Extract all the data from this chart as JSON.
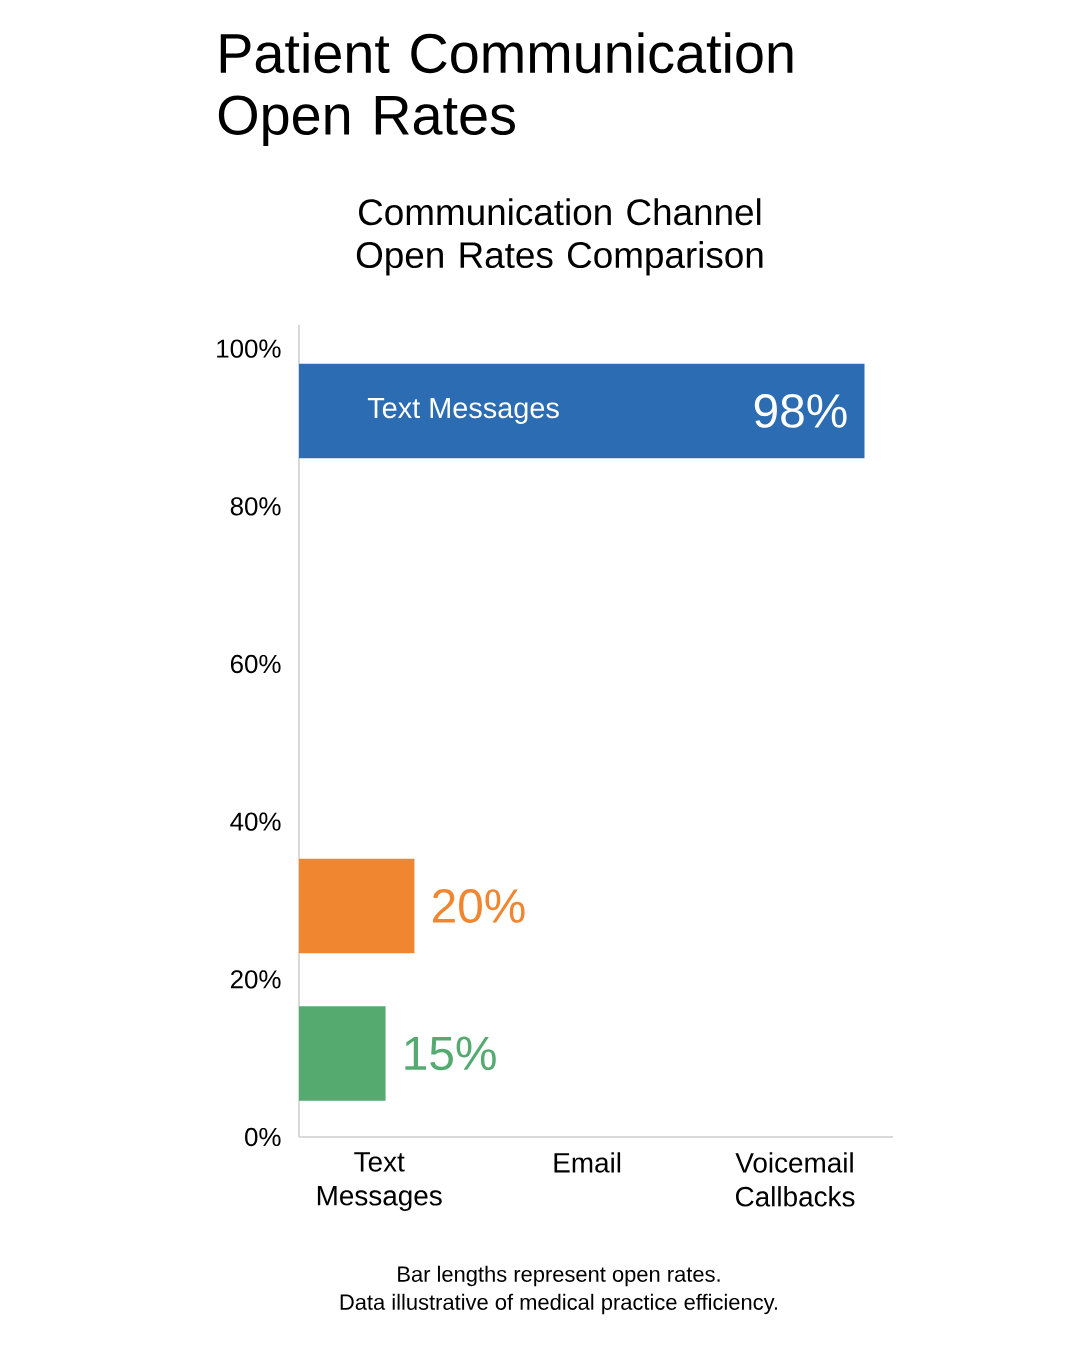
{
  "chart_data": {
    "type": "bar",
    "orientation": "horizontal",
    "title": "Patient Communication Open Rates",
    "subtitle": "Communication Channel Open Rates Comparison",
    "x": [
      92.1,
      29.3,
      10.6
    ],
    "values": [
      98,
      20,
      15
    ],
    "colors": [
      "#2b6cb3",
      "#f0862f",
      "#55aa70"
    ],
    "value_labels": [
      "98%",
      "20%",
      "15%"
    ],
    "ylim": [
      0,
      103
    ],
    "yticks": [
      {
        "value": 0,
        "label": "0%"
      },
      {
        "value": 20,
        "label": "20%"
      },
      {
        "value": 40,
        "label": "40%"
      },
      {
        "value": 60,
        "label": "60%"
      },
      {
        "value": 80,
        "label": "80%"
      },
      {
        "value": 100,
        "label": "100%"
      }
    ],
    "annotations": [
      "Text Messages",
      "Text Messages",
      "Email",
      "Voicemail Callbacks",
      "Bar lengths represent open rates.",
      "Data illustrative of medical practice efficiency."
    ]
  }
}
